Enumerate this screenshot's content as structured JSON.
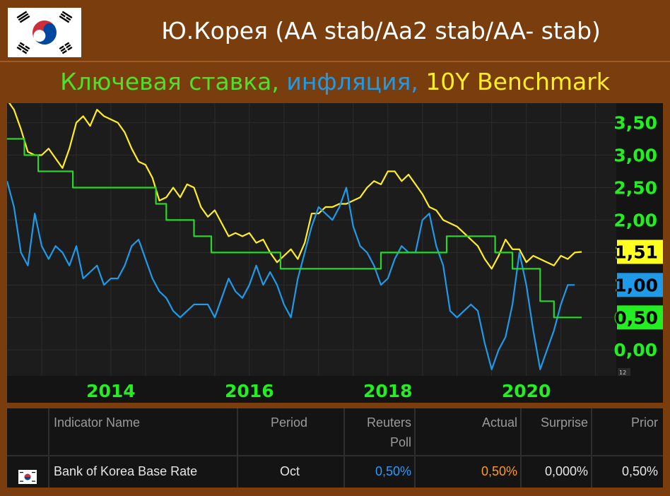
{
  "header": {
    "title": "Ю.Корея (AA stab/Aa2 stab/AA- stab)",
    "subtitle_part1": "Ключевая ставка,",
    "subtitle_part2": "инфляция,",
    "subtitle_part3": "10Y Benchmark"
  },
  "chart_data": {
    "type": "line",
    "x_ticks": [
      "2014",
      "2016",
      "2018",
      "2020"
    ],
    "y_ticks": [
      "3,50",
      "3,00",
      "2,50",
      "2,00",
      "1,50",
      "1,00",
      "0,50",
      "0,00"
    ],
    "ylim": [
      -0.4,
      3.8
    ],
    "xlim": [
      2012.5,
      2021.3
    ],
    "corner_label": "12",
    "end_labels": [
      "1,51",
      "1,00",
      "0,50"
    ],
    "colors": {
      "policy_rate": "#29d629",
      "inflation": "#1e9ae8",
      "bond_10y": "#ffee22",
      "axis_text": "#22ee22"
    },
    "series": [
      {
        "key": "bond_10y",
        "x": [
          2012.5,
          2012.6,
          2012.7,
          2012.8,
          2012.9,
          2013.0,
          2013.1,
          2013.2,
          2013.3,
          2013.4,
          2013.5,
          2013.6,
          2013.7,
          2013.8,
          2013.9,
          2014.0,
          2014.1,
          2014.2,
          2014.3,
          2014.4,
          2014.5,
          2014.6,
          2014.7,
          2014.8,
          2014.9,
          2015.0,
          2015.1,
          2015.2,
          2015.3,
          2015.4,
          2015.5,
          2015.6,
          2015.7,
          2015.8,
          2015.9,
          2016.0,
          2016.1,
          2016.2,
          2016.3,
          2016.4,
          2016.5,
          2016.6,
          2016.7,
          2016.8,
          2016.9,
          2017.0,
          2017.1,
          2017.2,
          2017.3,
          2017.4,
          2017.5,
          2017.6,
          2017.7,
          2017.8,
          2017.9,
          2018.0,
          2018.1,
          2018.2,
          2018.3,
          2018.4,
          2018.5,
          2018.6,
          2018.7,
          2018.8,
          2018.9,
          2019.0,
          2019.1,
          2019.2,
          2019.3,
          2019.4,
          2019.5,
          2019.6,
          2019.7,
          2019.8,
          2019.9,
          2020.0,
          2020.1,
          2020.2,
          2020.3,
          2020.4,
          2020.5,
          2020.6,
          2020.7,
          2020.8
        ],
        "y": [
          3.85,
          3.7,
          3.4,
          3.05,
          3.0,
          3.0,
          3.1,
          2.95,
          2.8,
          3.1,
          3.5,
          3.6,
          3.45,
          3.7,
          3.6,
          3.55,
          3.5,
          3.35,
          3.1,
          2.9,
          2.85,
          2.65,
          2.3,
          2.35,
          2.5,
          2.35,
          2.55,
          2.5,
          2.2,
          2.05,
          2.15,
          1.95,
          1.75,
          1.8,
          1.75,
          1.8,
          1.65,
          1.7,
          1.5,
          1.35,
          1.45,
          1.55,
          1.4,
          1.65,
          2.1,
          2.1,
          2.2,
          2.2,
          2.25,
          2.25,
          2.3,
          2.35,
          2.5,
          2.6,
          2.55,
          2.75,
          2.75,
          2.6,
          2.7,
          2.55,
          2.4,
          2.2,
          2.15,
          2.0,
          1.95,
          1.9,
          1.8,
          1.7,
          1.6,
          1.4,
          1.25,
          1.45,
          1.7,
          1.55,
          1.55,
          1.35,
          1.45,
          1.4,
          1.35,
          1.3,
          1.45,
          1.4,
          1.5,
          1.51
        ]
      },
      {
        "key": "inflation",
        "x": [
          2012.5,
          2012.6,
          2012.7,
          2012.8,
          2012.9,
          2013.0,
          2013.1,
          2013.2,
          2013.3,
          2013.4,
          2013.5,
          2013.6,
          2013.7,
          2013.8,
          2013.9,
          2014.0,
          2014.1,
          2014.2,
          2014.3,
          2014.4,
          2014.5,
          2014.6,
          2014.7,
          2014.8,
          2014.9,
          2015.0,
          2015.1,
          2015.2,
          2015.3,
          2015.4,
          2015.5,
          2015.6,
          2015.7,
          2015.8,
          2015.9,
          2016.0,
          2016.1,
          2016.2,
          2016.3,
          2016.4,
          2016.5,
          2016.6,
          2016.7,
          2016.8,
          2016.9,
          2017.0,
          2017.1,
          2017.2,
          2017.3,
          2017.4,
          2017.5,
          2017.6,
          2017.7,
          2017.8,
          2017.9,
          2018.0,
          2018.1,
          2018.2,
          2018.3,
          2018.4,
          2018.5,
          2018.6,
          2018.7,
          2018.8,
          2018.9,
          2019.0,
          2019.1,
          2019.2,
          2019.3,
          2019.4,
          2019.5,
          2019.6,
          2019.7,
          2019.8,
          2019.9,
          2020.0,
          2020.1,
          2020.2,
          2020.3,
          2020.4,
          2020.5,
          2020.6,
          2020.7
        ],
        "y": [
          2.6,
          2.2,
          1.5,
          1.3,
          2.1,
          1.6,
          1.4,
          1.6,
          1.5,
          1.3,
          1.6,
          1.1,
          1.2,
          1.3,
          1.0,
          1.1,
          1.1,
          1.3,
          1.6,
          1.7,
          1.4,
          1.1,
          0.9,
          0.8,
          0.6,
          0.5,
          0.6,
          0.7,
          0.7,
          0.7,
          0.5,
          0.8,
          1.1,
          0.9,
          0.8,
          1.0,
          1.3,
          1.0,
          1.2,
          1.0,
          0.7,
          0.5,
          1.1,
          1.5,
          1.9,
          2.2,
          2.1,
          2.0,
          2.2,
          2.5,
          1.9,
          1.6,
          1.5,
          1.3,
          1.0,
          1.1,
          1.4,
          1.6,
          1.5,
          1.5,
          2.0,
          2.1,
          1.6,
          1.3,
          0.6,
          0.5,
          0.6,
          0.7,
          0.6,
          0.1,
          -0.3,
          0.0,
          0.2,
          0.7,
          1.5,
          1.0,
          0.3,
          -0.3,
          0.0,
          0.3,
          0.7,
          1.0,
          1.0
        ]
      },
      {
        "key": "policy_rate",
        "x": [
          2012.5,
          2012.75,
          2012.75,
          2012.95,
          2012.95,
          2013.45,
          2013.45,
          2014.65,
          2014.65,
          2014.8,
          2014.8,
          2015.2,
          2015.2,
          2015.45,
          2015.45,
          2016.45,
          2016.45,
          2017.9,
          2017.9,
          2018.85,
          2018.85,
          2019.55,
          2019.55,
          2019.8,
          2019.8,
          2020.2,
          2020.2,
          2020.4,
          2020.4,
          2020.8
        ],
        "y": [
          3.25,
          3.25,
          3.0,
          3.0,
          2.75,
          2.75,
          2.5,
          2.5,
          2.25,
          2.25,
          2.0,
          2.0,
          1.75,
          1.75,
          1.5,
          1.5,
          1.25,
          1.25,
          1.5,
          1.5,
          1.75,
          1.75,
          1.5,
          1.5,
          1.25,
          1.25,
          0.75,
          0.75,
          0.5,
          0.5
        ]
      }
    ]
  },
  "table": {
    "headers": [
      "Indicator Name",
      "Period",
      "Reuters",
      "Poll",
      "Actual",
      "Surprise",
      "Prior"
    ],
    "row": {
      "name": "Bank of Korea Base Rate",
      "period": "Oct",
      "reuters_poll": "0,50%",
      "actual": "0,50%",
      "surprise": "0,000%",
      "prior": "0,50%"
    },
    "colors": {
      "poll": "#2a9aff",
      "actual": "#ff9a1f"
    }
  }
}
